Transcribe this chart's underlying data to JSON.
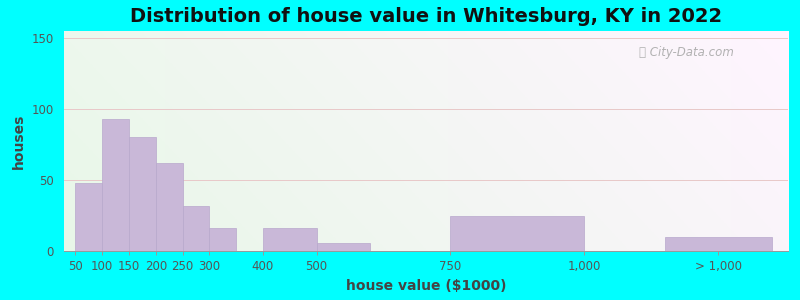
{
  "title": "Distribution of house value in Whitesburg, KY in 2022",
  "xlabel": "house value ($1000)",
  "ylabel": "houses",
  "bar_color": "#c9b8d8",
  "bar_edgecolor": "#b8a8cc",
  "bar_positions": [
    50,
    100,
    150,
    200,
    250,
    300,
    400,
    500,
    750,
    1150
  ],
  "bar_heights": [
    48,
    93,
    80,
    62,
    32,
    16,
    16,
    6,
    25,
    10
  ],
  "bar_widths": [
    50,
    50,
    50,
    50,
    50,
    50,
    100,
    100,
    250,
    200
  ],
  "tick_labels": [
    "50",
    "100",
    "150",
    "200",
    "250",
    "300",
    "400",
    "500",
    "750",
    "1,000",
    "> 1,000"
  ],
  "tick_positions": [
    50,
    100,
    150,
    200,
    250,
    300,
    400,
    500,
    750,
    1000,
    1250
  ],
  "ylim": [
    0,
    155
  ],
  "yticks": [
    0,
    50,
    100,
    150
  ],
  "outer_bg": "#00ffff",
  "watermark": "City-Data.com",
  "title_fontsize": 14,
  "axis_label_fontsize": 10,
  "grid_color": "#e8c8c8",
  "xlim_left": 28,
  "xlim_right": 1380
}
